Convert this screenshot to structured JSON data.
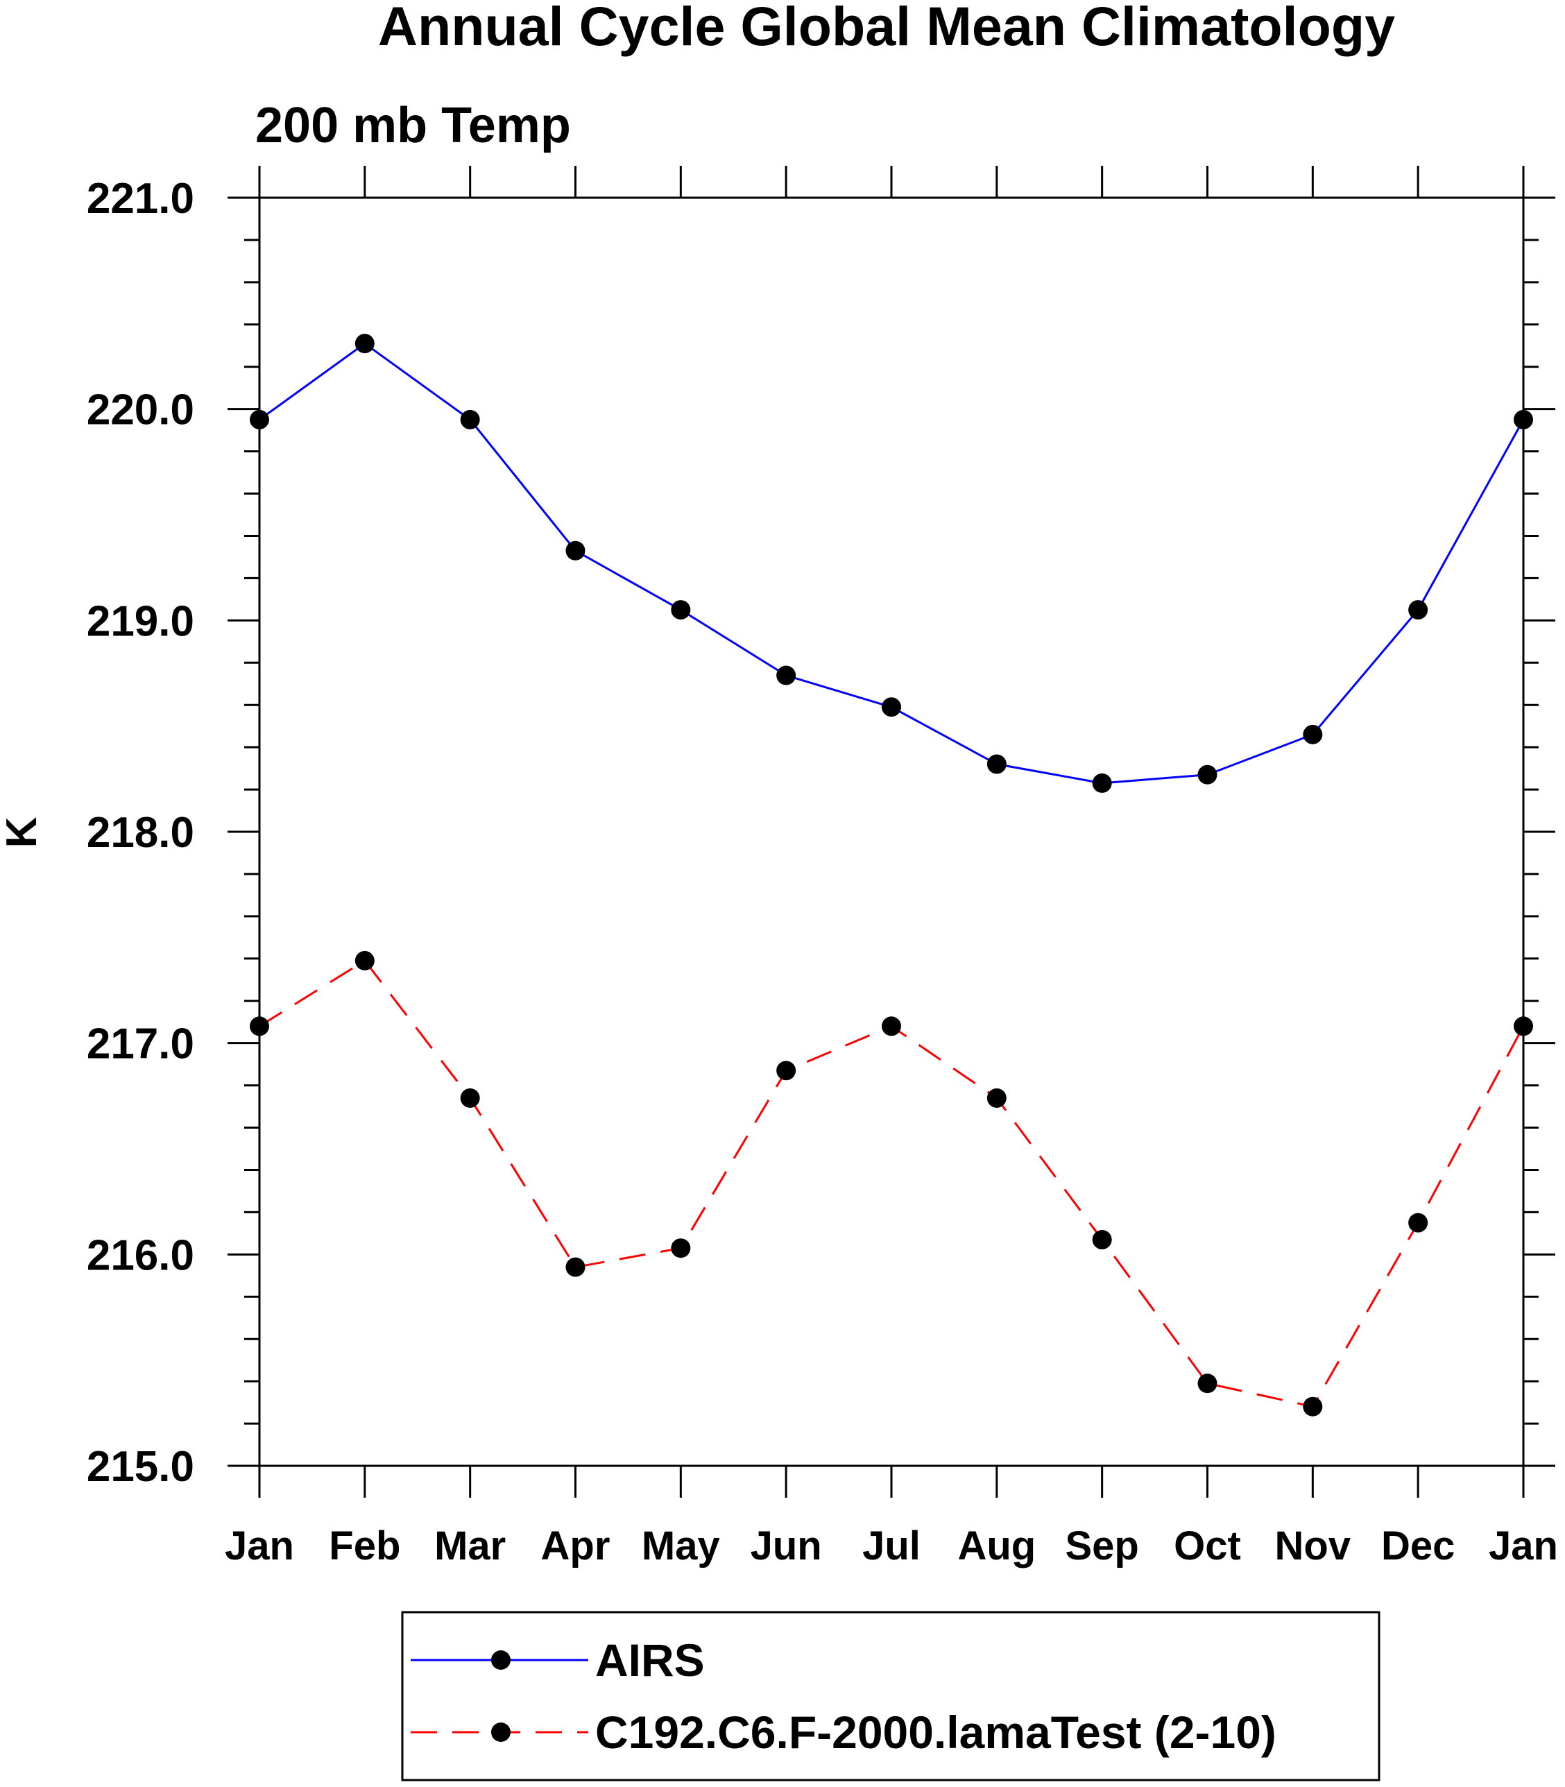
{
  "chart_data": {
    "type": "line",
    "title": "Annual Cycle Global Mean Climatology",
    "subtitle": "200 mb Temp",
    "xlabel": "",
    "ylabel": "K",
    "categories": [
      "Jan",
      "Feb",
      "Mar",
      "Apr",
      "May",
      "Jun",
      "Jul",
      "Aug",
      "Sep",
      "Oct",
      "Nov",
      "Dec",
      "Jan"
    ],
    "ylim": [
      215.0,
      221.0
    ],
    "yticks": [
      "215.0",
      "216.0",
      "217.0",
      "218.0",
      "219.0",
      "220.0",
      "221.0"
    ],
    "grid": false,
    "legend_position": "bottom",
    "series": [
      {
        "name": "AIRS",
        "color": "#0000ff",
        "line_style": "solid",
        "marker": "filled-circle",
        "values": [
          219.95,
          220.31,
          219.95,
          219.33,
          219.05,
          218.74,
          218.59,
          218.32,
          218.23,
          218.27,
          218.46,
          219.05,
          219.95
        ]
      },
      {
        "name": "C192.C6.F-2000.lamaTest (2-10)",
        "color": "#ff0000",
        "line_style": "dashed",
        "marker": "filled-circle",
        "values": [
          217.08,
          217.39,
          216.74,
          215.94,
          216.03,
          216.87,
          217.08,
          216.74,
          216.07,
          215.39,
          215.28,
          216.15,
          217.08
        ]
      }
    ]
  }
}
